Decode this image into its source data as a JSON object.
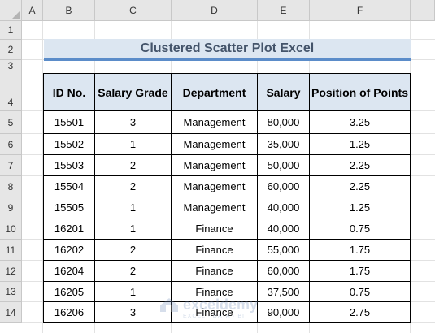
{
  "columns": [
    "A",
    "B",
    "C",
    "D",
    "E",
    "F"
  ],
  "rows": [
    "1",
    "2",
    "3",
    "4",
    "5",
    "6",
    "7",
    "8",
    "9",
    "10",
    "11",
    "12",
    "13",
    "14"
  ],
  "title": "Clustered Scatter Plot Excel",
  "table": {
    "headers": [
      "ID No.",
      "Salary Grade",
      "Department",
      "Salary",
      "Position of Points"
    ],
    "rows": [
      [
        "15501",
        "3",
        "Management",
        "80,000",
        "3.25"
      ],
      [
        "15502",
        "1",
        "Management",
        "35,000",
        "1.25"
      ],
      [
        "15503",
        "2",
        "Management",
        "50,000",
        "2.25"
      ],
      [
        "15504",
        "2",
        "Management",
        "60,000",
        "2.25"
      ],
      [
        "15505",
        "1",
        "Management",
        "40,000",
        "1.25"
      ],
      [
        "16201",
        "1",
        "Finance",
        "40,000",
        "0.75"
      ],
      [
        "16202",
        "2",
        "Finance",
        "55,000",
        "1.75"
      ],
      [
        "16204",
        "2",
        "Finance",
        "60,000",
        "1.75"
      ],
      [
        "16205",
        "1",
        "Finance",
        "37,500",
        "0.75"
      ],
      [
        "16206",
        "3",
        "Finance",
        "90,000",
        "2.75"
      ]
    ]
  },
  "watermark": {
    "name": "exceldemy",
    "tagline": "EXCEL · DATA · BI"
  },
  "colors": {
    "header_fill": "#dce6f1",
    "title_text": "#44546a",
    "accent_line": "#5b8cc9"
  }
}
